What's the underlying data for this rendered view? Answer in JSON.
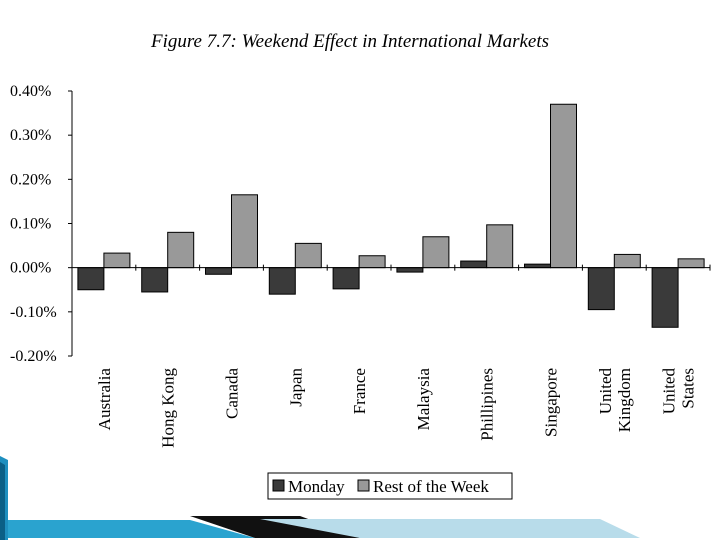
{
  "chart_data": {
    "type": "bar",
    "title": "Figure 7.7: Weekend Effect in International Markets",
    "categories": [
      [
        "Australia"
      ],
      [
        "Hong Kong"
      ],
      [
        "Canada"
      ],
      [
        "Japan"
      ],
      [
        "France"
      ],
      [
        "Malaysia"
      ],
      [
        "Phillipines"
      ],
      [
        "Singapore"
      ],
      [
        "United",
        "Kingdom"
      ],
      [
        "United",
        "States"
      ]
    ],
    "series": [
      {
        "name": "Monday",
        "color": "#3a3a3a",
        "values": [
          -0.05,
          -0.055,
          -0.015,
          -0.06,
          -0.048,
          -0.01,
          0.015,
          0.008,
          -0.095,
          -0.135
        ]
      },
      {
        "name": "Rest of the Week",
        "color": "#999999",
        "values": [
          0.033,
          0.08,
          0.165,
          0.055,
          0.027,
          0.07,
          0.097,
          0.37,
          0.03,
          0.02
        ]
      }
    ],
    "yticks": [
      "0.40%",
      "0.30%",
      "0.20%",
      "0.10%",
      "0.00%",
      "-0.10%",
      "-0.20%"
    ],
    "ylim": [
      -0.2,
      0.4
    ],
    "grid": false,
    "legend": "bottom-right"
  }
}
